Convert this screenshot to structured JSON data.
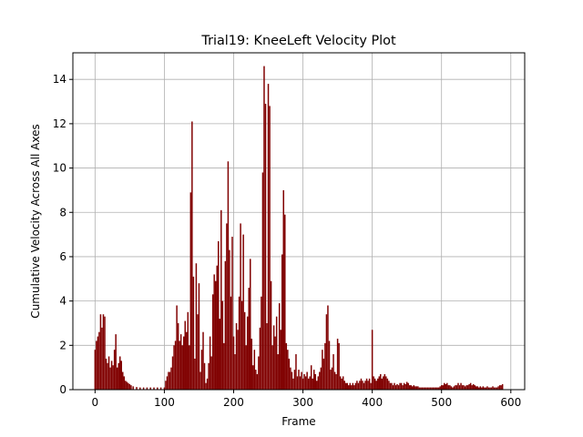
{
  "chart_data": {
    "type": "bar",
    "title": "Trial19: KneeLeft Velocity Plot",
    "xlabel": "Frame",
    "ylabel": "Cumulative Velocity Across All Axes",
    "xlim": [
      -32,
      620
    ],
    "ylim": [
      0,
      15.2
    ],
    "xticks": [
      0,
      100,
      200,
      300,
      400,
      500,
      600
    ],
    "yticks": [
      0,
      2,
      4,
      6,
      8,
      10,
      12,
      14
    ],
    "grid": true,
    "bar_color": "#800000",
    "series": [
      {
        "points": [
          [
            0,
            1.8
          ],
          [
            2,
            2.2
          ],
          [
            4,
            2.4
          ],
          [
            6,
            2.6
          ],
          [
            8,
            3.4
          ],
          [
            10,
            2.8
          ],
          [
            12,
            3.4
          ],
          [
            14,
            3.3
          ],
          [
            16,
            1.4
          ],
          [
            18,
            1.2
          ],
          [
            20,
            1.5
          ],
          [
            22,
            1.0
          ],
          [
            24,
            1.3
          ],
          [
            26,
            1.1
          ],
          [
            28,
            1.8
          ],
          [
            30,
            2.5
          ],
          [
            32,
            1.0
          ],
          [
            34,
            1.2
          ],
          [
            36,
            1.5
          ],
          [
            38,
            1.3
          ],
          [
            40,
            0.8
          ],
          [
            42,
            0.6
          ],
          [
            44,
            0.4
          ],
          [
            46,
            0.35
          ],
          [
            48,
            0.3
          ],
          [
            50,
            0.25
          ],
          [
            52,
            0.2
          ],
          [
            55,
            0.15
          ],
          [
            60,
            0.12
          ],
          [
            65,
            0.1
          ],
          [
            70,
            0.1
          ],
          [
            75,
            0.1
          ],
          [
            80,
            0.1
          ],
          [
            85,
            0.1
          ],
          [
            90,
            0.1
          ],
          [
            95,
            0.1
          ],
          [
            100,
            0.1
          ],
          [
            102,
            0.4
          ],
          [
            104,
            0.6
          ],
          [
            106,
            0.8
          ],
          [
            108,
            0.8
          ],
          [
            110,
            1.0
          ],
          [
            112,
            1.5
          ],
          [
            114,
            2.0
          ],
          [
            116,
            2.2
          ],
          [
            118,
            3.8
          ],
          [
            120,
            3.0
          ],
          [
            122,
            2.2
          ],
          [
            124,
            2.5
          ],
          [
            126,
            2.0
          ],
          [
            128,
            2.4
          ],
          [
            130,
            3.1
          ],
          [
            132,
            2.6
          ],
          [
            134,
            3.5
          ],
          [
            136,
            2.0
          ],
          [
            138,
            8.9
          ],
          [
            140,
            12.1
          ],
          [
            142,
            5.1
          ],
          [
            144,
            1.4
          ],
          [
            146,
            5.7
          ],
          [
            148,
            3.4
          ],
          [
            150,
            4.8
          ],
          [
            152,
            0.8
          ],
          [
            154,
            1.8
          ],
          [
            156,
            2.6
          ],
          [
            158,
            1.2
          ],
          [
            160,
            0.3
          ],
          [
            162,
            0.5
          ],
          [
            164,
            1.2
          ],
          [
            166,
            2.4
          ],
          [
            168,
            1.5
          ],
          [
            170,
            4.3
          ],
          [
            172,
            5.2
          ],
          [
            174,
            4.9
          ],
          [
            176,
            5.6
          ],
          [
            178,
            6.7
          ],
          [
            180,
            3.2
          ],
          [
            182,
            8.1
          ],
          [
            184,
            4.0
          ],
          [
            186,
            2.1
          ],
          [
            188,
            5.8
          ],
          [
            190,
            7.5
          ],
          [
            192,
            10.3
          ],
          [
            194,
            6.3
          ],
          [
            196,
            4.2
          ],
          [
            198,
            6.9
          ],
          [
            200,
            2.4
          ],
          [
            202,
            1.6
          ],
          [
            204,
            3.0
          ],
          [
            206,
            2.7
          ],
          [
            208,
            4.2
          ],
          [
            210,
            7.5
          ],
          [
            212,
            4.0
          ],
          [
            214,
            7.0
          ],
          [
            216,
            3.5
          ],
          [
            218,
            2.0
          ],
          [
            220,
            3.3
          ],
          [
            222,
            4.6
          ],
          [
            224,
            5.9
          ],
          [
            226,
            2.3
          ],
          [
            228,
            1.1
          ],
          [
            230,
            1.8
          ],
          [
            232,
            0.9
          ],
          [
            234,
            0.7
          ],
          [
            236,
            1.5
          ],
          [
            238,
            2.8
          ],
          [
            240,
            4.2
          ],
          [
            242,
            9.8
          ],
          [
            244,
            14.6
          ],
          [
            246,
            12.9
          ],
          [
            248,
            3.0
          ],
          [
            250,
            13.8
          ],
          [
            252,
            12.8
          ],
          [
            254,
            4.9
          ],
          [
            256,
            2.0
          ],
          [
            258,
            2.9
          ],
          [
            260,
            2.4
          ],
          [
            262,
            3.3
          ],
          [
            264,
            1.6
          ],
          [
            266,
            3.9
          ],
          [
            268,
            2.7
          ],
          [
            270,
            6.1
          ],
          [
            272,
            9.0
          ],
          [
            274,
            7.9
          ],
          [
            276,
            2.1
          ],
          [
            278,
            1.8
          ],
          [
            280,
            1.4
          ],
          [
            282,
            1.0
          ],
          [
            284,
            0.8
          ],
          [
            286,
            0.5
          ],
          [
            288,
            0.9
          ],
          [
            290,
            1.6
          ],
          [
            292,
            0.6
          ],
          [
            294,
            0.9
          ],
          [
            296,
            0.6
          ],
          [
            298,
            0.8
          ],
          [
            300,
            0.5
          ],
          [
            302,
            0.7
          ],
          [
            304,
            0.6
          ],
          [
            306,
            0.8
          ],
          [
            308,
            0.5
          ],
          [
            310,
            0.6
          ],
          [
            312,
            1.1
          ],
          [
            314,
            0.5
          ],
          [
            316,
            0.9
          ],
          [
            318,
            0.7
          ],
          [
            320,
            0.4
          ],
          [
            322,
            0.6
          ],
          [
            324,
            0.8
          ],
          [
            326,
            1.0
          ],
          [
            328,
            1.8
          ],
          [
            330,
            1.4
          ],
          [
            332,
            2.1
          ],
          [
            334,
            3.4
          ],
          [
            336,
            3.8
          ],
          [
            338,
            2.2
          ],
          [
            340,
            0.9
          ],
          [
            342,
            1.0
          ],
          [
            344,
            1.6
          ],
          [
            346,
            0.8
          ],
          [
            348,
            0.7
          ],
          [
            350,
            2.3
          ],
          [
            352,
            2.1
          ],
          [
            354,
            0.6
          ],
          [
            356,
            0.5
          ],
          [
            358,
            0.6
          ],
          [
            360,
            0.4
          ],
          [
            362,
            0.3
          ],
          [
            364,
            0.3
          ],
          [
            366,
            0.2
          ],
          [
            368,
            0.3
          ],
          [
            370,
            0.2
          ],
          [
            372,
            0.3
          ],
          [
            374,
            0.2
          ],
          [
            376,
            0.3
          ],
          [
            378,
            0.4
          ],
          [
            380,
            0.3
          ],
          [
            382,
            0.4
          ],
          [
            384,
            0.5
          ],
          [
            386,
            0.4
          ],
          [
            388,
            0.3
          ],
          [
            390,
            0.4
          ],
          [
            392,
            0.5
          ],
          [
            394,
            0.4
          ],
          [
            396,
            0.5
          ],
          [
            398,
            0.3
          ],
          [
            400,
            2.7
          ],
          [
            402,
            0.6
          ],
          [
            404,
            0.5
          ],
          [
            406,
            0.4
          ],
          [
            408,
            0.5
          ],
          [
            410,
            0.6
          ],
          [
            412,
            0.7
          ],
          [
            414,
            0.5
          ],
          [
            416,
            0.6
          ],
          [
            418,
            0.7
          ],
          [
            420,
            0.6
          ],
          [
            422,
            0.5
          ],
          [
            424,
            0.4
          ],
          [
            426,
            0.3
          ],
          [
            428,
            0.3
          ],
          [
            430,
            0.2
          ],
          [
            432,
            0.3
          ],
          [
            434,
            0.2
          ],
          [
            436,
            0.25
          ],
          [
            438,
            0.2
          ],
          [
            440,
            0.3
          ],
          [
            442,
            0.3
          ],
          [
            444,
            0.2
          ],
          [
            446,
            0.3
          ],
          [
            448,
            0.25
          ],
          [
            450,
            0.35
          ],
          [
            452,
            0.3
          ],
          [
            454,
            0.2
          ],
          [
            456,
            0.2
          ],
          [
            458,
            0.15
          ],
          [
            460,
            0.2
          ],
          [
            462,
            0.15
          ],
          [
            464,
            0.15
          ],
          [
            466,
            0.15
          ],
          [
            468,
            0.1
          ],
          [
            470,
            0.1
          ],
          [
            472,
            0.1
          ],
          [
            474,
            0.1
          ],
          [
            476,
            0.1
          ],
          [
            478,
            0.1
          ],
          [
            480,
            0.1
          ],
          [
            482,
            0.1
          ],
          [
            484,
            0.1
          ],
          [
            486,
            0.1
          ],
          [
            488,
            0.1
          ],
          [
            490,
            0.1
          ],
          [
            492,
            0.1
          ],
          [
            494,
            0.1
          ],
          [
            496,
            0.1
          ],
          [
            498,
            0.15
          ],
          [
            500,
            0.2
          ],
          [
            502,
            0.2
          ],
          [
            504,
            0.3
          ],
          [
            506,
            0.25
          ],
          [
            508,
            0.3
          ],
          [
            510,
            0.2
          ],
          [
            512,
            0.2
          ],
          [
            514,
            0.15
          ],
          [
            516,
            0.1
          ],
          [
            518,
            0.15
          ],
          [
            520,
            0.2
          ],
          [
            522,
            0.2
          ],
          [
            524,
            0.3
          ],
          [
            526,
            0.2
          ],
          [
            528,
            0.3
          ],
          [
            530,
            0.2
          ],
          [
            532,
            0.2
          ],
          [
            534,
            0.15
          ],
          [
            536,
            0.2
          ],
          [
            538,
            0.2
          ],
          [
            540,
            0.25
          ],
          [
            542,
            0.3
          ],
          [
            544,
            0.2
          ],
          [
            546,
            0.25
          ],
          [
            548,
            0.2
          ],
          [
            550,
            0.15
          ],
          [
            552,
            0.15
          ],
          [
            554,
            0.1
          ],
          [
            556,
            0.15
          ],
          [
            558,
            0.1
          ],
          [
            560,
            0.15
          ],
          [
            562,
            0.1
          ],
          [
            564,
            0.1
          ],
          [
            566,
            0.15
          ],
          [
            568,
            0.1
          ],
          [
            570,
            0.1
          ],
          [
            572,
            0.1
          ],
          [
            574,
            0.15
          ],
          [
            576,
            0.1
          ],
          [
            578,
            0.1
          ],
          [
            580,
            0.1
          ],
          [
            582,
            0.15
          ],
          [
            584,
            0.2
          ],
          [
            586,
            0.2
          ],
          [
            588,
            0.25
          ]
        ]
      }
    ]
  }
}
